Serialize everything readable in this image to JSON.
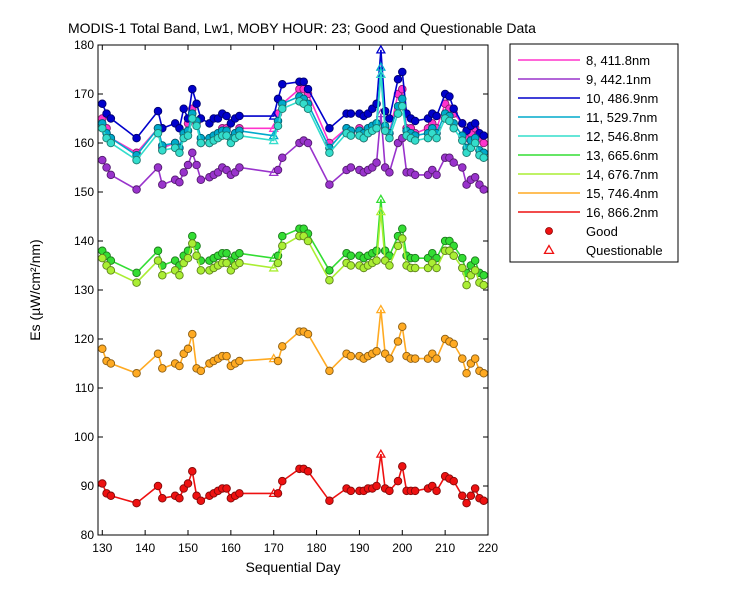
{
  "chart_data": {
    "type": "line",
    "title": "MODIS-1 Total Band,  Lw1, MOBY HOUR: 23;  Good and Questionable Data",
    "xlabel": "Sequential Day",
    "ylabel": "Es (µW/cm²/nm)",
    "xlim": [
      129,
      220
    ],
    "ylim": [
      80,
      180
    ],
    "xticks": [
      130,
      140,
      150,
      160,
      170,
      180,
      190,
      200,
      210,
      220
    ],
    "yticks": [
      80,
      90,
      100,
      110,
      120,
      130,
      140,
      150,
      160,
      170,
      180
    ],
    "grid": false,
    "legend_position": "outside-right",
    "x": [
      130,
      131,
      132,
      138,
      143,
      144,
      147,
      148,
      149,
      150,
      151,
      152,
      153,
      155,
      156,
      157,
      158,
      159,
      160,
      161,
      162,
      170,
      171,
      172,
      176,
      177,
      178,
      183,
      187,
      188,
      190,
      191,
      192,
      193,
      194,
      195,
      196,
      197,
      199,
      200,
      201,
      202,
      203,
      206,
      207,
      208,
      210,
      211,
      212,
      214,
      215,
      216,
      217,
      218,
      219
    ],
    "questionable_x": [
      170,
      195
    ],
    "series": [
      {
        "name": "8, 411.8nm",
        "color": "#ff33cc",
        "values": [
          165.0,
          163.0,
          161.0,
          158.0,
          163.0,
          159.0,
          160.0,
          159.0,
          162.0,
          164.0,
          167.0,
          164.0,
          160.0,
          160.0,
          161.0,
          162.0,
          163.0,
          163.0,
          161.0,
          162.0,
          163.0,
          163.0,
          166.0,
          168.0,
          171.0,
          171.0,
          170.0,
          160.0,
          163.0,
          162.0,
          163.0,
          161.0,
          162.0,
          163.0,
          164.0,
          174.0,
          163.0,
          162.0,
          170.0,
          171.0,
          163.0,
          163.0,
          162.0,
          163.0,
          164.0,
          163.0,
          168.0,
          167.0,
          166.0,
          164.0,
          161.0,
          162.0,
          163.0,
          161.0,
          160.0
        ]
      },
      {
        "name": "9, 442.1nm",
        "color": "#9933cc",
        "values": [
          156.5,
          155.0,
          153.5,
          150.5,
          155.0,
          151.5,
          152.5,
          152.0,
          154.0,
          155.5,
          158.0,
          155.5,
          152.5,
          153.0,
          153.5,
          154.0,
          155.0,
          154.5,
          153.5,
          154.0,
          155.0,
          154.0,
          154.5,
          157.0,
          160.0,
          160.5,
          160.0,
          151.5,
          154.5,
          155.0,
          154.5,
          154.0,
          154.5,
          155.0,
          156.0,
          166.0,
          155.0,
          154.0,
          160.0,
          161.0,
          154.0,
          154.0,
          153.5,
          153.5,
          154.5,
          153.5,
          157.0,
          157.0,
          156.0,
          155.0,
          151.5,
          152.5,
          153.0,
          151.5,
          150.5
        ]
      },
      {
        "name": "10, 486.9nm",
        "color": "#0000cc",
        "values": [
          168.0,
          166.0,
          165.0,
          161.0,
          166.5,
          163.0,
          164.0,
          163.0,
          167.0,
          165.0,
          171.0,
          168.0,
          165.0,
          164.0,
          165.0,
          165.0,
          166.0,
          165.5,
          164.0,
          165.0,
          165.5,
          165.5,
          169.0,
          172.0,
          172.5,
          172.5,
          171.0,
          163.0,
          166.0,
          166.0,
          166.0,
          165.5,
          166.0,
          167.0,
          168.0,
          179.0,
          166.5,
          165.0,
          173.0,
          174.5,
          166.0,
          165.0,
          164.5,
          165.0,
          166.0,
          165.5,
          170.0,
          169.5,
          167.0,
          164.0,
          162.5,
          163.5,
          164.0,
          162.0,
          161.5
        ]
      },
      {
        "name": "11, 529.7nm",
        "color": "#00aacc",
        "values": [
          164.0,
          162.0,
          161.0,
          157.5,
          163.0,
          159.5,
          160.0,
          159.0,
          162.0,
          162.5,
          166.0,
          164.5,
          161.0,
          161.0,
          161.5,
          162.0,
          162.5,
          162.5,
          161.0,
          162.0,
          162.5,
          161.5,
          164.5,
          168.0,
          169.5,
          169.0,
          168.0,
          159.0,
          163.0,
          162.5,
          162.5,
          162.0,
          163.0,
          163.5,
          164.0,
          175.5,
          163.5,
          162.0,
          167.5,
          169.0,
          162.5,
          162.0,
          161.5,
          162.0,
          163.0,
          162.0,
          166.0,
          165.5,
          164.0,
          161.5,
          159.0,
          160.5,
          161.0,
          158.5,
          158.0
        ]
      },
      {
        "name": "12, 546.8nm",
        "color": "#33ddcc",
        "values": [
          163.0,
          161.0,
          160.0,
          156.5,
          162.0,
          158.5,
          159.0,
          158.0,
          161.0,
          161.5,
          165.0,
          163.5,
          160.0,
          160.0,
          160.5,
          161.0,
          161.5,
          161.5,
          160.0,
          161.0,
          161.5,
          160.5,
          163.5,
          167.0,
          168.5,
          168.0,
          167.0,
          158.0,
          162.0,
          161.5,
          161.5,
          161.0,
          162.0,
          162.5,
          163.0,
          174.0,
          162.5,
          161.0,
          166.0,
          167.5,
          161.5,
          161.0,
          160.5,
          161.0,
          162.0,
          161.0,
          165.0,
          164.5,
          163.0,
          160.5,
          158.0,
          159.0,
          160.0,
          157.5,
          157.0
        ]
      },
      {
        "name": "13, 665.6nm",
        "color": "#33dd33",
        "values": [
          138.0,
          137.0,
          136.0,
          133.5,
          138.0,
          135.0,
          136.0,
          135.0,
          137.0,
          138.0,
          141.0,
          139.0,
          136.0,
          136.0,
          136.5,
          137.0,
          137.5,
          137.5,
          136.0,
          137.0,
          137.5,
          136.5,
          137.0,
          141.0,
          142.5,
          142.5,
          141.5,
          134.0,
          137.5,
          137.0,
          137.0,
          136.5,
          137.0,
          137.5,
          138.0,
          148.5,
          138.0,
          137.0,
          141.0,
          142.5,
          137.0,
          136.5,
          136.5,
          136.5,
          137.5,
          136.5,
          140.0,
          140.0,
          139.0,
          136.5,
          133.5,
          135.0,
          136.0,
          133.5,
          133.0
        ]
      },
      {
        "name": "14, 676.7nm",
        "color": "#aaee33",
        "values": [
          136.5,
          135.0,
          134.0,
          131.5,
          136.0,
          133.0,
          134.0,
          133.0,
          135.5,
          136.5,
          139.5,
          137.0,
          134.0,
          134.0,
          134.5,
          135.0,
          135.5,
          135.5,
          134.0,
          135.0,
          135.5,
          134.5,
          135.5,
          139.0,
          141.0,
          141.0,
          140.0,
          132.0,
          135.5,
          135.0,
          135.0,
          134.5,
          135.0,
          135.5,
          136.0,
          146.0,
          136.0,
          135.0,
          139.0,
          140.5,
          135.0,
          134.5,
          134.5,
          134.5,
          135.5,
          134.5,
          138.0,
          138.0,
          137.0,
          134.5,
          131.0,
          133.0,
          134.0,
          131.5,
          131.0
        ]
      },
      {
        "name": "15, 746.4nm",
        "color": "#ffaa22",
        "values": [
          118.0,
          115.5,
          115.0,
          113.0,
          117.0,
          114.0,
          115.0,
          114.5,
          117.0,
          118.0,
          121.0,
          114.0,
          113.5,
          115.0,
          115.5,
          116.0,
          116.5,
          116.5,
          114.5,
          115.0,
          115.5,
          116.0,
          115.5,
          118.5,
          121.5,
          121.5,
          121.0,
          113.5,
          117.0,
          116.5,
          116.5,
          116.0,
          116.5,
          117.0,
          117.5,
          126.0,
          117.0,
          116.0,
          119.5,
          122.5,
          116.5,
          116.0,
          116.0,
          116.0,
          117.0,
          116.0,
          120.0,
          119.5,
          119.0,
          116.0,
          113.0,
          115.0,
          116.0,
          113.5,
          113.0
        ]
      },
      {
        "name": "16, 866.2nm",
        "color": "#ee1111",
        "values": [
          90.5,
          88.5,
          88.0,
          86.5,
          90.0,
          87.5,
          88.0,
          87.5,
          89.5,
          90.5,
          93.0,
          88.0,
          87.0,
          88.0,
          88.5,
          89.0,
          89.5,
          89.5,
          87.5,
          88.0,
          88.5,
          88.5,
          88.5,
          91.0,
          93.5,
          93.5,
          93.0,
          87.0,
          89.5,
          89.0,
          89.0,
          89.0,
          89.5,
          89.5,
          90.0,
          96.5,
          89.5,
          89.0,
          91.0,
          94.0,
          89.0,
          89.0,
          89.0,
          89.5,
          90.0,
          89.0,
          92.0,
          91.5,
          91.0,
          88.0,
          86.5,
          88.0,
          89.5,
          87.5,
          87.0
        ]
      }
    ],
    "markers": [
      {
        "name": "Good",
        "shape": "filled-circle"
      },
      {
        "name": "Questionable",
        "shape": "open-triangle"
      }
    ]
  }
}
